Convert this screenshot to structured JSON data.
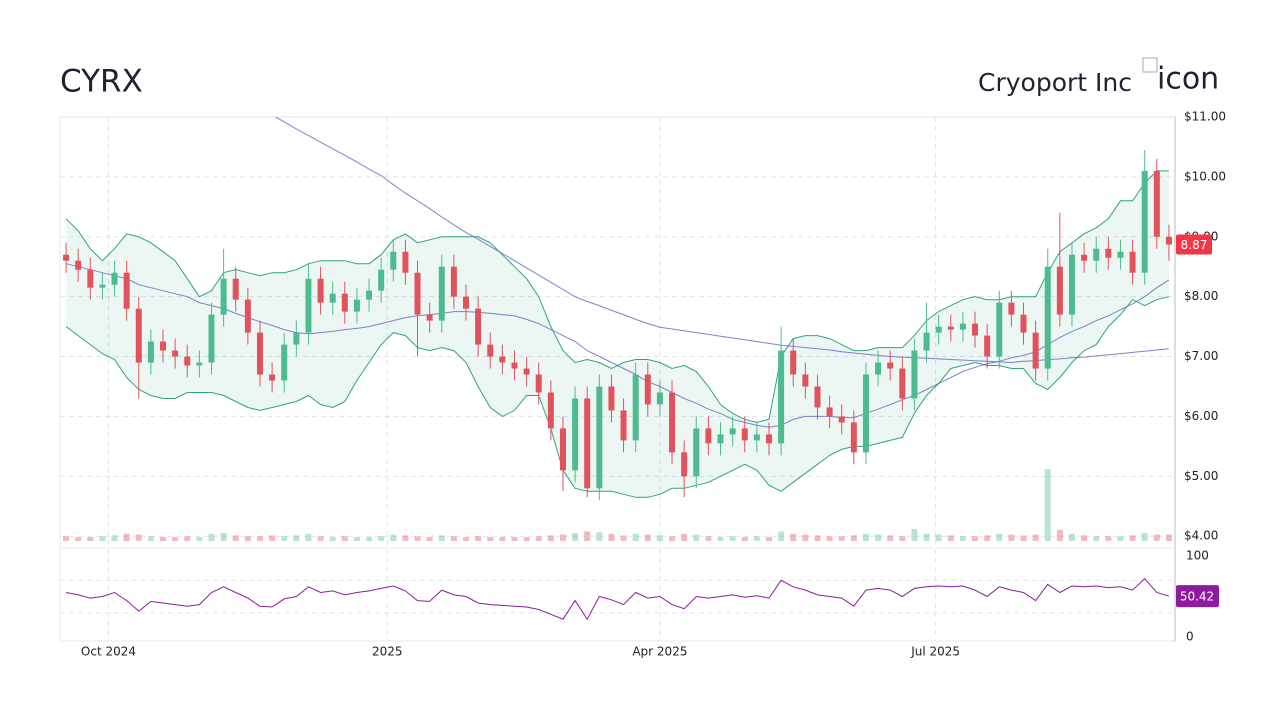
{
  "chart_data": {
    "type": "candlestick",
    "title": "CYRX",
    "subtitle": "Cryoport Inc",
    "logo_alt": "icon",
    "x": [
      "2024-09-17",
      "2024-09-21",
      "2024-09-25",
      "2024-09-29",
      "2024-10-03",
      "2024-10-07",
      "2024-10-11",
      "2024-10-15",
      "2024-10-19",
      "2024-10-23",
      "2024-10-27",
      "2024-10-31",
      "2024-11-04",
      "2024-11-08",
      "2024-11-12",
      "2024-11-16",
      "2024-11-20",
      "2024-11-24",
      "2024-11-28",
      "2024-12-02",
      "2024-12-06",
      "2024-12-10",
      "2024-12-14",
      "2024-12-18",
      "2024-12-22",
      "2024-12-26",
      "2024-12-30",
      "2025-01-03",
      "2025-01-07",
      "2025-01-11",
      "2025-01-15",
      "2025-01-19",
      "2025-01-23",
      "2025-01-27",
      "2025-01-31",
      "2025-02-04",
      "2025-02-08",
      "2025-02-12",
      "2025-02-16",
      "2025-02-20",
      "2025-02-24",
      "2025-02-28",
      "2025-03-04",
      "2025-03-08",
      "2025-03-12",
      "2025-03-16",
      "2025-03-20",
      "2025-03-24",
      "2025-03-28",
      "2025-04-01",
      "2025-04-05",
      "2025-04-09",
      "2025-04-13",
      "2025-04-17",
      "2025-04-21",
      "2025-04-25",
      "2025-04-29",
      "2025-05-03",
      "2025-05-07",
      "2025-05-11",
      "2025-05-15",
      "2025-05-19",
      "2025-05-23",
      "2025-05-27",
      "2025-05-31",
      "2025-06-04",
      "2025-06-08",
      "2025-06-12",
      "2025-06-16",
      "2025-06-20",
      "2025-06-24",
      "2025-06-28",
      "2025-07-02",
      "2025-07-06",
      "2025-07-10",
      "2025-07-14",
      "2025-07-18",
      "2025-07-22",
      "2025-07-26",
      "2025-07-30",
      "2025-08-03",
      "2025-08-07",
      "2025-08-11",
      "2025-08-15",
      "2025-08-19",
      "2025-08-23",
      "2025-08-27",
      "2025-08-31",
      "2025-09-04",
      "2025-09-08",
      "2025-09-12",
      "2025-09-16"
    ],
    "open": [
      8.7,
      8.6,
      8.45,
      8.15,
      8.2,
      8.4,
      7.8,
      6.9,
      7.25,
      7.1,
      7.0,
      6.85,
      6.9,
      7.7,
      8.3,
      7.95,
      7.4,
      6.7,
      6.6,
      7.2,
      7.4,
      8.3,
      7.9,
      8.05,
      7.75,
      7.95,
      8.1,
      8.45,
      8.75,
      8.4,
      7.7,
      7.6,
      8.5,
      8.0,
      7.8,
      7.2,
      7.0,
      6.9,
      6.8,
      6.7,
      6.4,
      5.8,
      5.1,
      6.3,
      4.8,
      6.5,
      6.1,
      5.6,
      6.7,
      6.2,
      6.4,
      5.4,
      5.0,
      5.8,
      5.55,
      5.7,
      5.8,
      5.6,
      5.7,
      5.55,
      7.1,
      6.7,
      6.5,
      6.15,
      6.0,
      5.9,
      5.4,
      6.7,
      6.9,
      6.8,
      6.3,
      7.1,
      7.4,
      7.5,
      7.45,
      7.55,
      7.35,
      7.0,
      7.9,
      7.7,
      7.4,
      6.8,
      8.5,
      7.7,
      8.7,
      8.6,
      8.8,
      8.65,
      8.75,
      8.4,
      10.1,
      9.0
    ],
    "high": [
      8.9,
      8.8,
      8.65,
      8.4,
      8.6,
      8.6,
      8.0,
      7.45,
      7.45,
      7.3,
      7.2,
      7.1,
      7.9,
      8.8,
      8.5,
      8.15,
      7.6,
      6.9,
      7.4,
      7.6,
      8.55,
      8.5,
      8.25,
      8.25,
      8.15,
      8.3,
      8.65,
      8.95,
      8.95,
      8.6,
      7.9,
      8.7,
      8.7,
      8.2,
      8.0,
      7.4,
      7.2,
      7.1,
      7.0,
      6.9,
      6.6,
      6.0,
      6.5,
      6.5,
      6.7,
      6.7,
      6.3,
      6.9,
      6.9,
      6.6,
      6.6,
      5.6,
      6.0,
      6.0,
      5.9,
      6.0,
      6.0,
      5.9,
      5.9,
      7.5,
      7.3,
      6.9,
      6.7,
      6.35,
      6.2,
      6.1,
      6.9,
      7.1,
      7.1,
      7.0,
      7.3,
      7.9,
      7.7,
      7.7,
      7.75,
      7.75,
      7.55,
      8.1,
      8.1,
      7.9,
      7.6,
      8.8,
      9.4,
      8.9,
      8.9,
      9.0,
      9.0,
      8.95,
      8.95,
      10.45,
      10.3,
      9.2
    ],
    "low": [
      8.4,
      8.25,
      7.95,
      7.95,
      8.0,
      7.6,
      6.3,
      6.7,
      6.9,
      6.8,
      6.65,
      6.65,
      6.7,
      7.5,
      7.75,
      7.2,
      6.5,
      6.4,
      6.4,
      7.0,
      7.2,
      7.7,
      7.7,
      7.55,
      7.55,
      7.75,
      7.9,
      8.25,
      8.2,
      7.0,
      7.4,
      7.4,
      7.8,
      7.6,
      7.0,
      6.8,
      6.7,
      6.6,
      6.5,
      6.2,
      5.6,
      4.75,
      4.9,
      4.65,
      4.6,
      5.9,
      5.4,
      5.4,
      6.0,
      6.0,
      5.2,
      4.65,
      4.8,
      5.35,
      5.35,
      5.5,
      5.4,
      5.4,
      5.35,
      5.35,
      6.5,
      6.3,
      5.95,
      5.8,
      5.7,
      5.2,
      5.2,
      6.5,
      6.6,
      6.1,
      6.1,
      6.9,
      7.2,
      7.25,
      7.25,
      7.15,
      6.8,
      6.8,
      7.5,
      7.2,
      6.6,
      6.6,
      7.5,
      7.5,
      8.4,
      8.4,
      8.45,
      8.45,
      8.2,
      8.2,
      8.8,
      8.6
    ],
    "close": [
      8.6,
      8.45,
      8.15,
      8.2,
      8.4,
      7.8,
      6.9,
      7.25,
      7.1,
      7.0,
      6.85,
      6.9,
      7.7,
      8.3,
      7.95,
      7.4,
      6.7,
      6.6,
      7.2,
      7.4,
      8.3,
      7.9,
      8.05,
      7.75,
      7.95,
      8.1,
      8.45,
      8.75,
      8.4,
      7.7,
      7.6,
      8.5,
      8.0,
      7.8,
      7.2,
      7.0,
      6.9,
      6.8,
      6.7,
      6.4,
      5.8,
      5.1,
      6.3,
      4.8,
      6.5,
      6.1,
      5.6,
      6.7,
      6.2,
      6.4,
      5.4,
      5.0,
      5.8,
      5.55,
      5.7,
      5.8,
      5.6,
      5.7,
      5.55,
      7.1,
      6.7,
      6.5,
      6.15,
      6.0,
      5.9,
      5.4,
      6.7,
      6.9,
      6.8,
      6.3,
      7.1,
      7.4,
      7.5,
      7.45,
      7.55,
      7.35,
      7.0,
      7.9,
      7.7,
      7.4,
      6.8,
      8.5,
      7.7,
      8.7,
      8.6,
      8.8,
      8.65,
      8.75,
      8.4,
      10.1,
      9.0,
      8.87
    ],
    "volume": [
      6,
      5,
      5,
      6,
      7,
      9,
      8,
      6,
      5,
      5,
      6,
      5,
      9,
      10,
      7,
      6,
      6,
      7,
      6,
      7,
      9,
      6,
      5,
      6,
      5,
      5,
      6,
      8,
      7,
      6,
      5,
      7,
      6,
      5,
      6,
      5,
      5,
      5,
      5,
      6,
      7,
      8,
      10,
      12,
      11,
      9,
      7,
      9,
      8,
      7,
      6,
      9,
      8,
      6,
      5,
      6,
      5,
      6,
      5,
      12,
      9,
      8,
      7,
      6,
      6,
      7,
      9,
      8,
      7,
      6,
      15,
      9,
      8,
      7,
      6,
      6,
      7,
      9,
      8,
      7,
      8,
      90,
      14,
      9,
      7,
      6,
      6,
      6,
      7,
      10,
      8,
      8
    ],
    "bb_upper": [
      9.3,
      9.1,
      8.8,
      8.6,
      8.8,
      9.05,
      9.0,
      8.9,
      8.75,
      8.6,
      8.3,
      8.0,
      8.1,
      8.4,
      8.45,
      8.4,
      8.35,
      8.4,
      8.4,
      8.45,
      8.55,
      8.6,
      8.6,
      8.6,
      8.55,
      8.55,
      8.7,
      8.95,
      9.05,
      8.9,
      8.95,
      9.0,
      9.0,
      9.0,
      9.0,
      8.9,
      8.7,
      8.5,
      8.3,
      8.0,
      7.5,
      7.1,
      6.9,
      6.95,
      6.9,
      6.8,
      6.9,
      6.95,
      6.95,
      6.9,
      6.8,
      6.85,
      6.75,
      6.5,
      6.2,
      6.05,
      5.95,
      5.9,
      5.95,
      7.0,
      7.3,
      7.35,
      7.35,
      7.3,
      7.2,
      7.1,
      7.1,
      7.15,
      7.15,
      7.15,
      7.35,
      7.6,
      7.75,
      7.85,
      7.95,
      8.0,
      7.95,
      7.95,
      8.0,
      8.0,
      8.0,
      8.4,
      8.75,
      8.9,
      9.05,
      9.15,
      9.3,
      9.6,
      9.6,
      9.9,
      10.1,
      10.1
    ],
    "bb_lower": [
      7.5,
      7.35,
      7.2,
      7.05,
      6.95,
      6.65,
      6.45,
      6.35,
      6.3,
      6.3,
      6.4,
      6.4,
      6.4,
      6.35,
      6.25,
      6.15,
      6.1,
      6.15,
      6.2,
      6.25,
      6.35,
      6.2,
      6.15,
      6.25,
      6.6,
      6.9,
      7.2,
      7.4,
      7.35,
      7.15,
      7.1,
      7.15,
      7.1,
      6.9,
      6.5,
      6.15,
      6.0,
      6.1,
      6.35,
      6.35,
      5.8,
      5.1,
      4.8,
      4.75,
      4.75,
      4.75,
      4.7,
      4.65,
      4.65,
      4.7,
      4.8,
      4.8,
      4.85,
      4.9,
      5.0,
      5.1,
      5.2,
      5.1,
      4.85,
      4.75,
      4.9,
      5.05,
      5.2,
      5.35,
      5.45,
      5.5,
      5.5,
      5.55,
      5.6,
      5.65,
      6.05,
      6.35,
      6.55,
      6.8,
      6.85,
      6.9,
      6.85,
      6.85,
      6.8,
      6.8,
      6.55,
      6.45,
      6.65,
      6.9,
      7.1,
      7.2,
      7.5,
      7.7,
      7.95,
      7.85,
      7.95,
      8.0
    ],
    "ma50": [
      8.55,
      8.5,
      8.45,
      8.4,
      8.35,
      8.3,
      8.2,
      8.15,
      8.1,
      8.05,
      8.0,
      7.9,
      7.85,
      7.8,
      7.72,
      7.65,
      7.58,
      7.52,
      7.45,
      7.4,
      7.38,
      7.4,
      7.42,
      7.45,
      7.47,
      7.5,
      7.55,
      7.6,
      7.65,
      7.68,
      7.7,
      7.72,
      7.75,
      7.75,
      7.74,
      7.72,
      7.7,
      7.68,
      7.62,
      7.55,
      7.45,
      7.35,
      7.25,
      7.1,
      7.0,
      6.9,
      6.8,
      6.7,
      6.58,
      6.5,
      6.4,
      6.3,
      6.22,
      6.12,
      6.05,
      5.95,
      5.9,
      5.85,
      5.82,
      5.85,
      5.95,
      6.0,
      6.0,
      6.0,
      5.98,
      5.98,
      6.05,
      6.12,
      6.2,
      6.28,
      6.35,
      6.45,
      6.55,
      6.65,
      6.75,
      6.82,
      6.88,
      6.92,
      6.98,
      7.02,
      7.08,
      7.2,
      7.32,
      7.42,
      7.5,
      7.6,
      7.68,
      7.78,
      7.88,
      8.0,
      8.15,
      8.28
    ],
    "ma200": [
      null,
      null,
      null,
      null,
      null,
      null,
      null,
      null,
      null,
      null,
      null,
      null,
      null,
      null,
      null,
      null,
      null,
      11.03,
      10.92,
      10.8,
      10.69,
      10.58,
      10.47,
      10.36,
      10.25,
      10.13,
      10.02,
      9.87,
      9.73,
      9.6,
      9.47,
      9.33,
      9.2,
      9.07,
      8.96,
      8.84,
      8.72,
      8.6,
      8.48,
      8.36,
      8.24,
      8.12,
      8.0,
      7.92,
      7.85,
      7.77,
      7.7,
      7.62,
      7.55,
      7.49,
      7.46,
      7.43,
      7.4,
      7.37,
      7.34,
      7.31,
      7.28,
      7.25,
      7.22,
      7.19,
      7.17,
      7.15,
      7.13,
      7.11,
      7.08,
      7.06,
      7.04,
      7.02,
      7.0,
      6.99,
      6.98,
      6.97,
      6.96,
      6.95,
      6.94,
      6.93,
      6.92,
      6.91,
      6.9,
      6.92,
      6.93,
      6.95,
      6.96,
      6.98,
      6.99,
      7.01,
      7.03,
      7.05,
      7.07,
      7.09,
      7.11,
      7.13
    ],
    "rsi": [
      55,
      52,
      48,
      50,
      55,
      45,
      32,
      44,
      42,
      40,
      38,
      40,
      55,
      62,
      55,
      48,
      38,
      37,
      47,
      50,
      62,
      55,
      57,
      52,
      55,
      57,
      60,
      63,
      57,
      45,
      44,
      58,
      52,
      50,
      42,
      40,
      39,
      38,
      37,
      34,
      28,
      22,
      45,
      22,
      50,
      46,
      40,
      55,
      48,
      50,
      40,
      35,
      50,
      48,
      50,
      52,
      49,
      51,
      48,
      70,
      62,
      58,
      52,
      50,
      48,
      38,
      58,
      60,
      58,
      50,
      60,
      62,
      63,
      62,
      63,
      58,
      50,
      62,
      58,
      55,
      45,
      65,
      55,
      63,
      62,
      63,
      61,
      62,
      58,
      72,
      55,
      50.42
    ],
    "xlim": [
      "2024-09-15",
      "2025-09-18"
    ],
    "xticks": [
      {
        "value": "2024-10-01",
        "label": "Oct 2024"
      },
      {
        "value": "2025-01-01",
        "label": "2025"
      },
      {
        "value": "2025-04-01",
        "label": "Apr 2025"
      },
      {
        "value": "2025-07-01",
        "label": "Jul 2025"
      }
    ],
    "ylim": [
      3.92,
      11
    ],
    "yticks": [
      {
        "value": 4,
        "label": "$4.00"
      },
      {
        "value": 5,
        "label": "$5.00"
      },
      {
        "value": 6,
        "label": "$6.00"
      },
      {
        "value": 7,
        "label": "$7.00"
      },
      {
        "value": 8,
        "label": "$8.00"
      },
      {
        "value": 9,
        "label": "$9.00"
      },
      {
        "value": 10,
        "label": "$10.00"
      },
      {
        "value": 11,
        "label": "$11.00"
      }
    ],
    "rsi_lim": [
      -5,
      110
    ],
    "rsi_ticks": [
      0,
      100
    ],
    "rsi_levels": [
      30,
      70
    ],
    "grid": true,
    "up_color": "#4dbb8f",
    "down_color": "#e0525c",
    "band_color": "#2fa37f",
    "ma50_color": "#6b6bc4",
    "ma200_color": "#6b6bc4",
    "rsi_color": "#8e1a9e",
    "price_badge_color": "#f23645"
  }
}
